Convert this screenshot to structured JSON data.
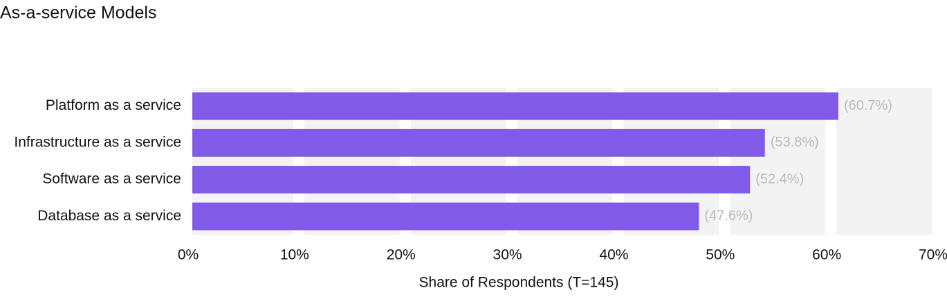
{
  "chart_data": {
    "type": "barh",
    "title": "As-a-service Models",
    "x_label": "Share of Respondents (T=145)",
    "categories": [
      "Platform as a service",
      "Infrastructure as a service",
      "Software as a service",
      "Database as a service"
    ],
    "values": [
      60.7,
      53.8,
      52.4,
      47.6
    ],
    "value_labels": [
      "(60.7%)",
      "(53.8%)",
      "(52.4%)",
      "(47.6%)"
    ],
    "color": "#815be8",
    "xlim": [
      0,
      70
    ],
    "xticks": [
      {
        "value": 0,
        "label": "0%"
      },
      {
        "value": 10,
        "label": "10%"
      },
      {
        "value": 20,
        "label": "20%"
      },
      {
        "value": 30,
        "label": "30%"
      },
      {
        "value": 40,
        "label": "40%"
      },
      {
        "value": 50,
        "label": "50%"
      },
      {
        "value": 60,
        "label": "60%"
      },
      {
        "value": 70,
        "label": "70%"
      }
    ],
    "grid": true
  }
}
